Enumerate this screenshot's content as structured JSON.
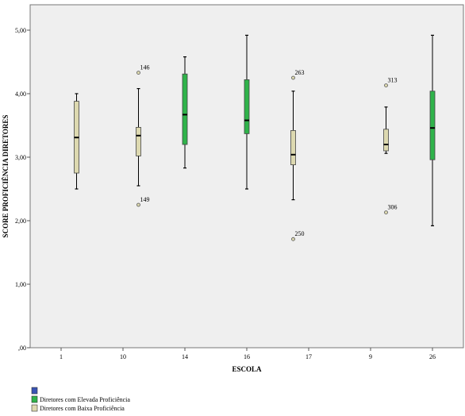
{
  "chart_data": {
    "type": "boxplot",
    "title": "",
    "xlabel": "ESCOLA",
    "ylabel": "SCORE PROFICIÊNCIA DIRETORES",
    "ylim": [
      0,
      5.4
    ],
    "yticks": [
      0,
      1,
      2,
      3,
      4,
      5
    ],
    "ytick_labels": [
      ",00",
      "1,00",
      "2,00",
      "3,00",
      "4,00",
      "5,00"
    ],
    "categories": [
      "1",
      "10",
      "14",
      "16",
      "17",
      "9",
      "26"
    ],
    "grid": false,
    "legend_position": "bottom-left",
    "series": [
      {
        "name": "Diretores com Elevada Proficiência",
        "color": "#2fb34a"
      },
      {
        "name": "Diretores com Baixa Proficiência",
        "color": "#ddd9b0"
      }
    ],
    "legend_extra_swatch_color": "#3a54b4",
    "boxes": [
      {
        "category": "1",
        "series": 1,
        "offset": 0.25,
        "whisker_low": 2.5,
        "q1": 2.75,
        "median": 3.31,
        "q3": 3.88,
        "whisker_high": 4.0,
        "outliers": []
      },
      {
        "category": "10",
        "series": 1,
        "offset": 0.25,
        "whisker_low": 2.55,
        "q1": 3.02,
        "median": 3.34,
        "q3": 3.47,
        "whisker_high": 4.08,
        "outliers": [
          {
            "value": 4.33,
            "label": "146"
          },
          {
            "value": 2.25,
            "label": "149"
          }
        ]
      },
      {
        "category": "14",
        "series": 0,
        "offset": 0,
        "whisker_low": 2.83,
        "q1": 3.2,
        "median": 3.67,
        "q3": 4.31,
        "whisker_high": 4.58,
        "outliers": []
      },
      {
        "category": "16",
        "series": 0,
        "offset": 0,
        "whisker_low": 2.5,
        "q1": 3.37,
        "median": 3.58,
        "q3": 4.22,
        "whisker_high": 4.92,
        "outliers": []
      },
      {
        "category": "17",
        "series": 1,
        "offset": -0.25,
        "whisker_low": 2.33,
        "q1": 2.88,
        "median": 3.04,
        "q3": 3.42,
        "whisker_high": 4.04,
        "outliers": [
          {
            "value": 4.25,
            "label": "263"
          },
          {
            "value": 1.71,
            "label": "250"
          }
        ]
      },
      {
        "category": "9",
        "series": 1,
        "offset": 0.25,
        "whisker_low": 3.06,
        "q1": 3.1,
        "median": 3.2,
        "q3": 3.44,
        "whisker_high": 3.79,
        "outliers": [
          {
            "value": 4.13,
            "label": "313"
          },
          {
            "value": 2.13,
            "label": "306"
          }
        ]
      },
      {
        "category": "26",
        "series": 0,
        "offset": 0,
        "whisker_low": 1.92,
        "q1": 2.96,
        "median": 3.46,
        "q3": 4.04,
        "whisker_high": 4.92,
        "outliers": []
      }
    ]
  }
}
